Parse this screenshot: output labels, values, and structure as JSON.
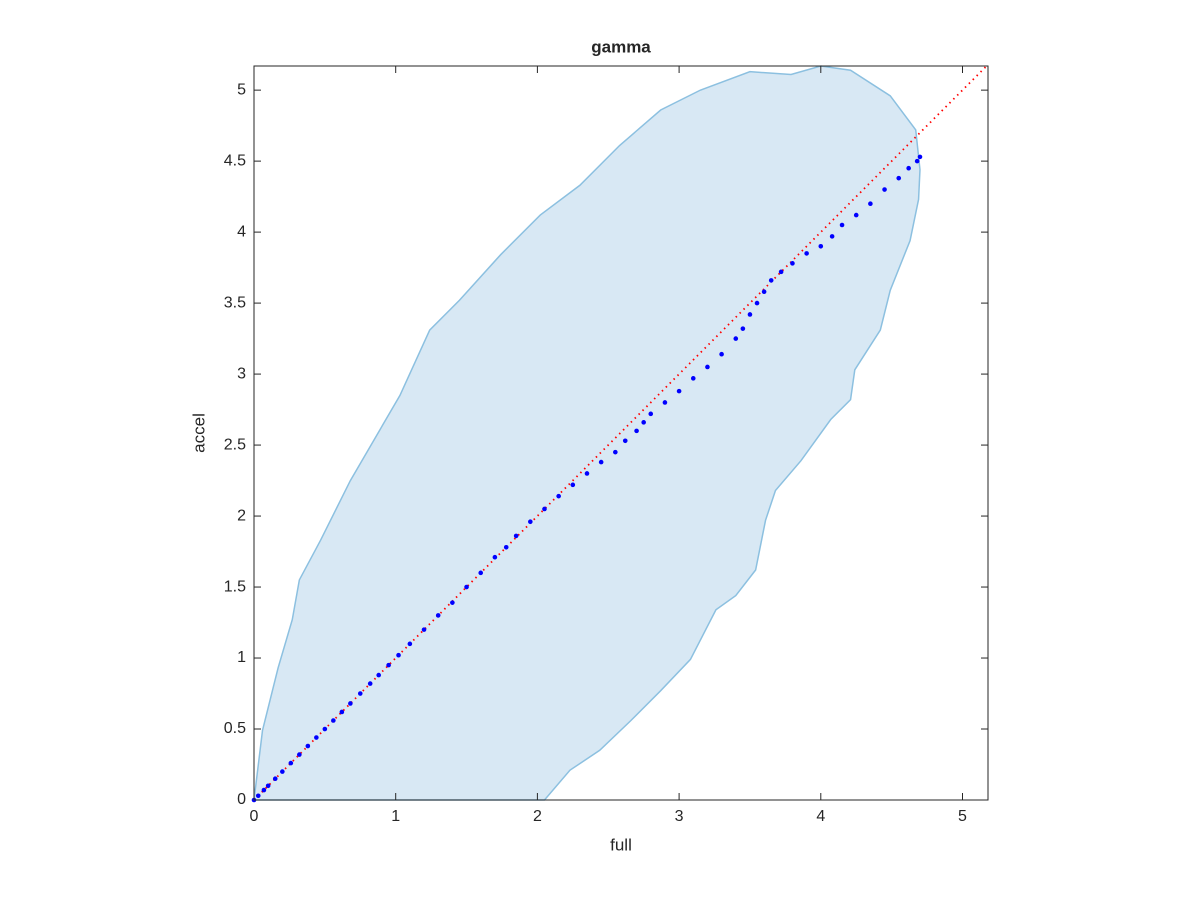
{
  "chart_data": {
    "type": "scatter",
    "title": "gamma",
    "x_label": "full",
    "y_label": "accel",
    "xlim": [
      0,
      5.18
    ],
    "ylim": [
      0,
      5.17
    ],
    "xticks": [
      0,
      1,
      2,
      3,
      4,
      5
    ],
    "yticks": [
      0,
      0.5,
      1,
      1.5,
      2,
      2.5,
      3,
      3.5,
      4,
      4.5,
      5
    ],
    "diagonal_color": "#ff0000",
    "region": {
      "color": "#d8e8f4",
      "edge_color": "#8cc0e0",
      "x": [
        0,
        0.06,
        0.17,
        0.27,
        0.32,
        0.47,
        0.68,
        0.89,
        1.03,
        1.24,
        1.45,
        1.74,
        2.02,
        2.3,
        2.58,
        2.87,
        3.15,
        3.5,
        3.79,
        4.0,
        4.21,
        4.49,
        4.67,
        4.7,
        4.69,
        4.63,
        4.49,
        4.42,
        4.24,
        4.21,
        4.07,
        3.86,
        3.68,
        3.61,
        3.54,
        3.4,
        3.26,
        3.08,
        2.87,
        2.66,
        2.44,
        2.23,
        2.05
      ],
      "y": [
        0,
        0.49,
        0.93,
        1.27,
        1.55,
        1.83,
        2.25,
        2.61,
        2.85,
        3.31,
        3.52,
        3.84,
        4.12,
        4.33,
        4.61,
        4.86,
        5.0,
        5.13,
        5.11,
        5.17,
        5.14,
        4.96,
        4.72,
        4.44,
        4.23,
        3.94,
        3.59,
        3.31,
        3.03,
        2.82,
        2.68,
        2.39,
        2.18,
        1.97,
        1.62,
        1.44,
        1.34,
        0.99,
        0.77,
        0.56,
        0.35,
        0.21,
        0
      ]
    },
    "points": {
      "color": "#0000ff",
      "x": [
        0,
        0.03,
        0.07,
        0.1,
        0.15,
        0.2,
        0.26,
        0.32,
        0.38,
        0.44,
        0.5,
        0.56,
        0.62,
        0.68,
        0.75,
        0.82,
        0.88,
        0.95,
        1.02,
        1.1,
        1.2,
        1.3,
        1.4,
        1.5,
        1.6,
        1.7,
        1.78,
        1.85,
        1.95,
        2.05,
        2.15,
        2.25,
        2.35,
        2.45,
        2.55,
        2.62,
        2.7,
        2.75,
        2.8,
        2.9,
        3.0,
        3.1,
        3.2,
        3.3,
        3.4,
        3.45,
        3.5,
        3.55,
        3.6,
        3.65,
        3.72,
        3.8,
        3.9,
        4.0,
        4.08,
        4.15,
        4.25,
        4.35,
        4.45,
        4.55,
        4.62,
        4.68,
        4.7
      ],
      "y": [
        0,
        0.03,
        0.07,
        0.1,
        0.15,
        0.2,
        0.26,
        0.32,
        0.38,
        0.44,
        0.5,
        0.56,
        0.62,
        0.68,
        0.75,
        0.82,
        0.88,
        0.95,
        1.02,
        1.1,
        1.2,
        1.3,
        1.39,
        1.5,
        1.6,
        1.71,
        1.78,
        1.86,
        1.96,
        2.05,
        2.14,
        2.22,
        2.3,
        2.38,
        2.45,
        2.53,
        2.6,
        2.66,
        2.72,
        2.8,
        2.88,
        2.97,
        3.05,
        3.14,
        3.25,
        3.32,
        3.42,
        3.5,
        3.58,
        3.66,
        3.72,
        3.78,
        3.85,
        3.9,
        3.97,
        4.05,
        4.12,
        4.2,
        4.3,
        4.38,
        4.45,
        4.5,
        4.53
      ]
    }
  }
}
